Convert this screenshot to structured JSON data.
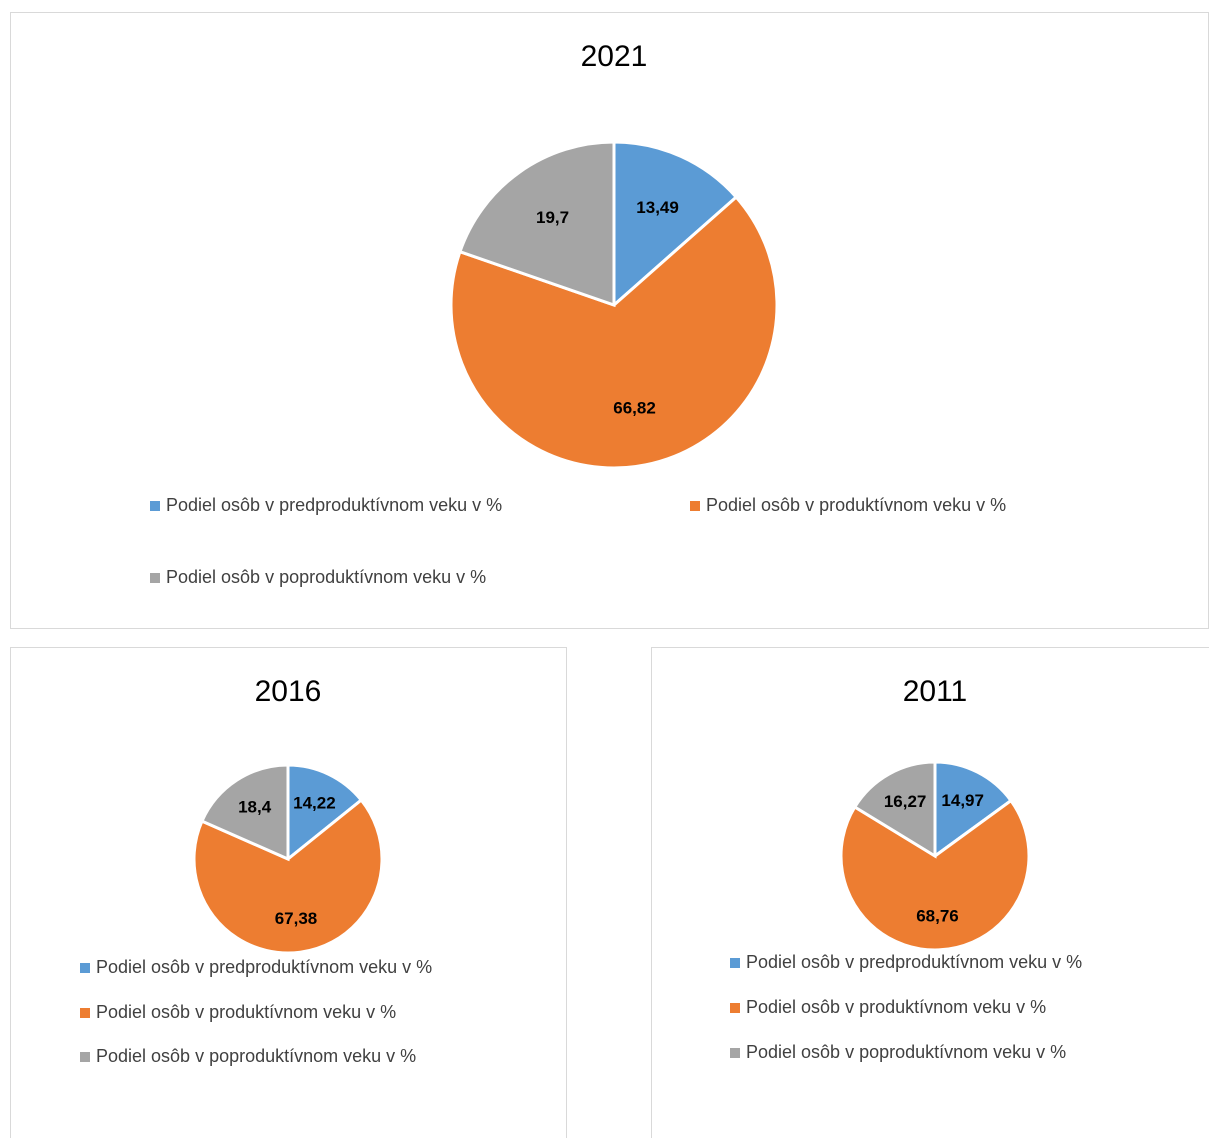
{
  "chart_data": [
    {
      "type": "pie",
      "title": "2021",
      "categories": [
        "Podiel osôb v predproduktívnom veku v %",
        "Podiel osôb v produktívnom veku v %",
        "Podiel osôb v poproduktívnom veku v %"
      ],
      "values": [
        13.49,
        66.82,
        19.7
      ],
      "value_labels": [
        "13,49",
        "66,82",
        "19,7"
      ],
      "colors": [
        "#5b9bd5",
        "#ed7d31",
        "#a5a5a5"
      ]
    },
    {
      "type": "pie",
      "title": "2016",
      "categories": [
        "Podiel osôb v predproduktívnom veku v %",
        "Podiel osôb v produktívnom veku v %",
        "Podiel osôb v poproduktívnom veku v %"
      ],
      "values": [
        14.22,
        67.38,
        18.4
      ],
      "value_labels": [
        "14,22",
        "67,38",
        "18,4"
      ],
      "colors": [
        "#5b9bd5",
        "#ed7d31",
        "#a5a5a5"
      ]
    },
    {
      "type": "pie",
      "title": "2011",
      "categories": [
        "Podiel osôb v predproduktívnom veku v %",
        "Podiel osôb v produktívnom veku v %",
        "Podiel osôb v poproduktívnom veku v %"
      ],
      "values": [
        14.97,
        68.76,
        16.27
      ],
      "value_labels": [
        "14,97",
        "68,76",
        "16,27"
      ],
      "colors": [
        "#5b9bd5",
        "#ed7d31",
        "#a5a5a5"
      ]
    }
  ]
}
